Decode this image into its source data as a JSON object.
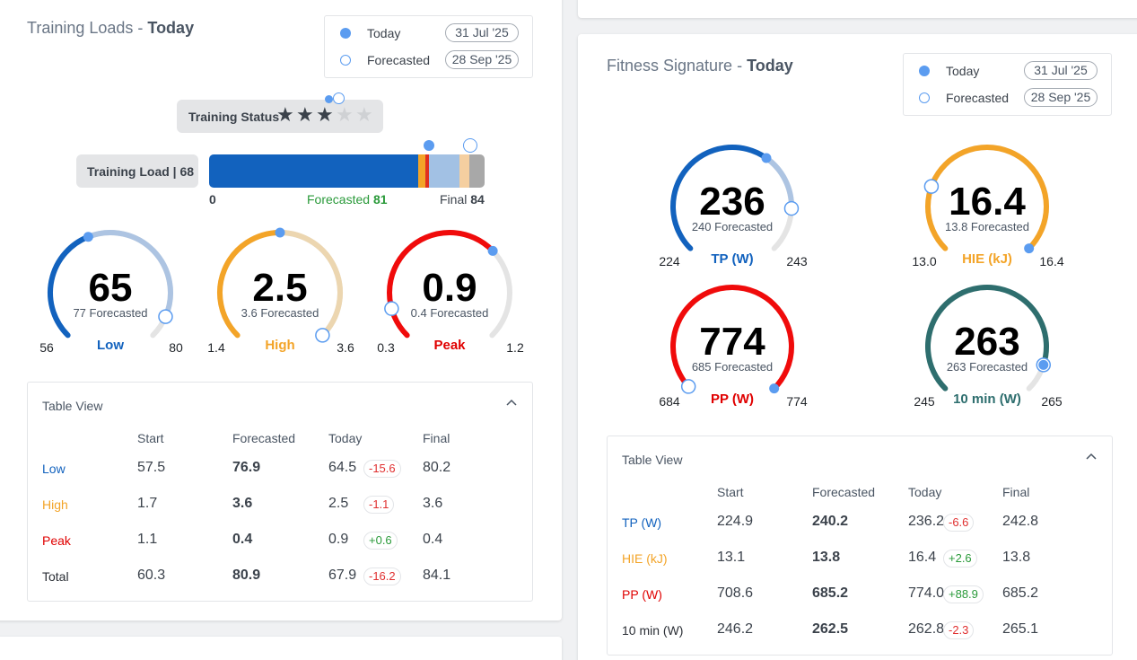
{
  "training_loads": {
    "title": "Training Loads",
    "title_suffix": "Today",
    "legend": {
      "today_label": "Today",
      "today_date": "31 Jul '25",
      "forecast_label": "Forecasted",
      "forecast_date": "28 Sep '25"
    },
    "status": {
      "label": "Training Status",
      "stars_total": 5,
      "stars_filled": 3
    },
    "load": {
      "label": "Training Load | 68",
      "min": "0",
      "forecast_label": "Forecasted",
      "forecast_value": "81",
      "final_label": "Final",
      "final_value": "84",
      "current": 68,
      "forecast": 81,
      "final": 84,
      "max": 84
    },
    "gauges": [
      {
        "name": "Low",
        "value": "65",
        "forecast_text": "77 Forecasted",
        "min": "56",
        "max": "80",
        "color": "#1262be",
        "track": "#adc4e2",
        "today_frac": 0.42,
        "forecast_frac": 0.92
      },
      {
        "name": "High",
        "value": "2.5",
        "forecast_text": "3.6 Forecasted",
        "min": "1.4",
        "max": "3.6",
        "color": "#f3a428",
        "track": "#ecd6b0",
        "today_frac": 0.5,
        "forecast_frac": 1.0
      },
      {
        "name": "Peak",
        "value": "0.9",
        "forecast_text": "0.4 Forecasted",
        "min": "0.3",
        "max": "1.2",
        "color": "#f00b0b",
        "track": "#e4e4e4",
        "today_frac": 0.67,
        "forecast_frac": 0.11
      }
    ],
    "table": {
      "title": "Table View",
      "headers": [
        "Start",
        "Forecasted",
        "Today",
        "Final"
      ],
      "rows": [
        {
          "label": "Low",
          "color": "#1262be",
          "start": "57.5",
          "forecast": "76.9",
          "today": "64.5",
          "delta": "-15.6",
          "final": "80.2"
        },
        {
          "label": "High",
          "color": "#f3a428",
          "start": "1.7",
          "forecast": "3.6",
          "today": "2.5",
          "delta": "-1.1",
          "final": "3.6"
        },
        {
          "label": "Peak",
          "color": "#e00000",
          "start": "1.1",
          "forecast": "0.4",
          "today": "0.9",
          "delta": "+0.6",
          "final": "0.4"
        },
        {
          "label": "Total",
          "color": "#2b2f36",
          "start": "60.3",
          "forecast": "80.9",
          "today": "67.9",
          "delta": "-16.2",
          "final": "84.1"
        }
      ]
    }
  },
  "fitness_signature": {
    "title": "Fitness Signature",
    "title_suffix": "Today",
    "legend": {
      "today_label": "Today",
      "today_date": "31 Jul '25",
      "forecast_label": "Forecasted",
      "forecast_date": "28 Sep '25"
    },
    "gauges": [
      {
        "name": "TP (W)",
        "value": "236",
        "forecast_text": "240 Forecasted",
        "min": "224",
        "max": "243",
        "color": "#1262be",
        "track": "#adc4e2",
        "grey": "#e4e4e4",
        "today_frac": 0.63,
        "forecast_frac": 0.84
      },
      {
        "name": "HIE (kJ)",
        "value": "16.4",
        "forecast_text": "13.8 Forecasted",
        "min": "13.0",
        "max": "16.4",
        "color": "#f3a428",
        "track": "#ecd6b0",
        "grey": "#e4e4e4",
        "today_frac": 1.0,
        "forecast_frac": 0.24
      },
      {
        "name": "PP (W)",
        "value": "774",
        "forecast_text": "685 Forecasted",
        "min": "684",
        "max": "774",
        "color": "#f00b0b",
        "track": "#f00b0b",
        "grey": "#e4e4e4",
        "today_frac": 1.0,
        "forecast_frac": 0.01
      },
      {
        "name": "10 min (W)",
        "value": "263",
        "forecast_text": "263 Forecasted",
        "min": "245",
        "max": "265",
        "color": "#2e6e6e",
        "track": "#2e6e6e",
        "grey": "#e4e4e4",
        "today_frac": 0.9,
        "forecast_frac": 0.9
      }
    ],
    "table": {
      "title": "Table View",
      "headers": [
        "Start",
        "Forecasted",
        "Today",
        "Final"
      ],
      "rows": [
        {
          "label": "TP (W)",
          "color": "#1262be",
          "start": "224.9",
          "forecast": "240.2",
          "today": "236.2",
          "delta": "-6.6",
          "final": "242.8"
        },
        {
          "label": "HIE (kJ)",
          "color": "#f3a428",
          "start": "13.1",
          "forecast": "13.8",
          "today": "16.4",
          "delta": "+2.6",
          "final": "13.8"
        },
        {
          "label": "PP (W)",
          "color": "#e00000",
          "start": "708.6",
          "forecast": "685.2",
          "today": "774.0",
          "delta": "+88.9",
          "final": "685.2"
        },
        {
          "label": "10 min (W)",
          "color": "#2b2f36",
          "start": "246.2",
          "forecast": "262.5",
          "today": "262.8",
          "delta": "-2.3",
          "final": "265.1"
        }
      ]
    }
  },
  "colors": {
    "today_dot": "#5b9cf0",
    "bar_blue": "#1262be",
    "bar_orange": "#f3a428",
    "bar_red": "#e03020",
    "bar_lightblue": "#a2c1e4",
    "bar_peach": "#f5cfa0",
    "bar_grey": "#a8a8a8"
  }
}
